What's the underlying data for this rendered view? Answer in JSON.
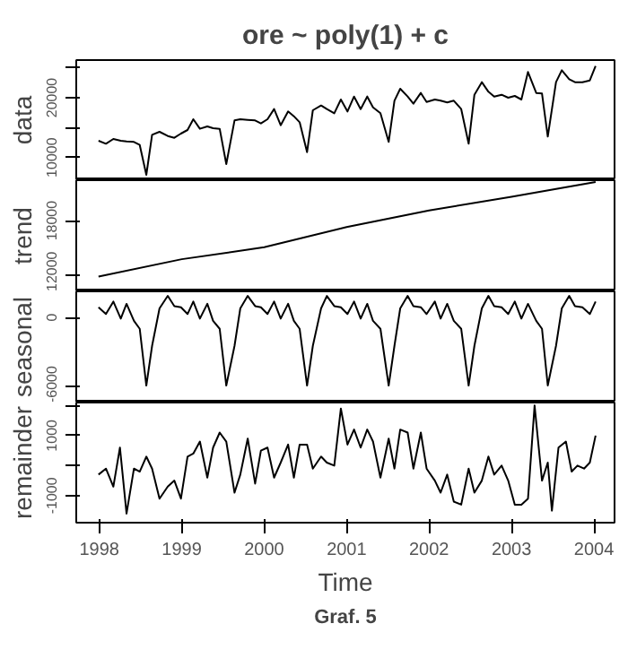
{
  "chart_data": [
    {
      "type": "line",
      "title": "ore ~ poly(1) + c",
      "ylabel": "data",
      "tick_labels": "y",
      "grid": false,
      "xlim": [
        1997.72,
        2004.25
      ],
      "ylim": [
        6200,
        26300
      ],
      "yticks": [
        10000,
        {
          "value": 15000,
          "label": null
        },
        20000,
        {
          "value": 25000,
          "label": null
        }
      ],
      "series": [
        {
          "color": "#000000",
          "x": [
            1997.99,
            1998.08,
            1998.17,
            1998.26,
            1998.33,
            1998.42,
            1998.49,
            1998.57,
            1998.64,
            1998.73,
            1998.83,
            1998.91,
            1998.99,
            1999.07,
            1999.14,
            1999.22,
            1999.31,
            1999.38,
            1999.46,
            1999.54,
            1999.64,
            1999.71,
            1999.8,
            1999.89,
            1999.96,
            2000.04,
            2000.12,
            2000.2,
            2000.29,
            2000.36,
            2000.43,
            2000.52,
            2000.59,
            2000.69,
            2000.76,
            2000.85,
            2000.93,
            2001.01,
            2001.09,
            2001.17,
            2001.25,
            2001.32,
            2001.41,
            2001.51,
            2001.58,
            2001.65,
            2001.74,
            2001.81,
            2001.9,
            2001.97,
            2002.07,
            2002.14,
            2002.22,
            2002.3,
            2002.39,
            2002.48,
            2002.55,
            2002.64,
            2002.72,
            2002.79,
            2002.88,
            2002.96,
            2003.04,
            2003.12,
            2003.2,
            2003.3,
            2003.37,
            2003.44,
            2003.54,
            2003.61,
            2003.7,
            2003.77,
            2003.86,
            2003.95,
            2004.02
          ],
          "values": [
            12800,
            12300,
            13100,
            12800,
            12700,
            12600,
            12100,
            7100,
            13800,
            14300,
            13600,
            13300,
            14000,
            14600,
            16400,
            14800,
            15200,
            14900,
            14800,
            8900,
            16200,
            16400,
            16300,
            16200,
            15700,
            16400,
            18100,
            15400,
            17700,
            16900,
            15900,
            10900,
            17900,
            18700,
            18100,
            17400,
            19700,
            17700,
            20200,
            18100,
            20200,
            18400,
            17400,
            12600,
            19500,
            21500,
            20200,
            19000,
            20800,
            19300,
            19700,
            19500,
            19200,
            19500,
            18100,
            12300,
            20500,
            22600,
            21000,
            20200,
            20500,
            20000,
            20300,
            19700,
            24300,
            20800,
            20700,
            13500,
            22600,
            24600,
            23100,
            22600,
            22600,
            22900,
            25300
          ]
        }
      ]
    },
    {
      "type": "line",
      "ylabel": "trend",
      "tick_labels": "y",
      "grid": false,
      "xlim": [
        1997.72,
        2004.25
      ],
      "ylim": [
        10300,
        22400
      ],
      "yticks": [
        12000,
        18000
      ],
      "series": [
        {
          "color": "#000000",
          "x": [
            1997.99,
            1999.0,
            2000.0,
            2001.0,
            2002.0,
            2003.0,
            2004.02
          ],
          "values": [
            11900,
            13800,
            15100,
            17300,
            19100,
            20600,
            22200
          ]
        }
      ]
    },
    {
      "type": "line",
      "ylabel": "seasonal",
      "tick_labels": "y",
      "grid": false,
      "xlim": [
        1997.72,
        2004.25
      ],
      "ylim": [
        -7500,
        2300
      ],
      "yticks": [
        -6000,
        0
      ],
      "series": [
        {
          "color": "#000000",
          "x": [
            1997.99,
            1998.08,
            1998.17,
            1998.26,
            1998.33,
            1998.42,
            1998.49,
            1998.57,
            1998.64,
            1998.73,
            1998.83,
            1998.91,
            1998.99,
            1999.07,
            1999.14,
            1999.22,
            1999.31,
            1999.38,
            1999.46,
            1999.54,
            1999.64,
            1999.71,
            1999.8,
            1999.89,
            1999.96,
            2000.04,
            2000.12,
            2000.2,
            2000.29,
            2000.36,
            2000.43,
            2000.52,
            2000.59,
            2000.69,
            2000.76,
            2000.85,
            2000.93,
            2001.01,
            2001.09,
            2001.17,
            2001.25,
            2001.32,
            2001.41,
            2001.51,
            2001.58,
            2001.65,
            2001.74,
            2001.81,
            2001.9,
            2001.97,
            2002.07,
            2002.14,
            2002.22,
            2002.3,
            2002.39,
            2002.48,
            2002.55,
            2002.64,
            2002.72,
            2002.79,
            2002.88,
            2002.96,
            2003.04,
            2003.12,
            2003.2,
            2003.3,
            2003.37,
            2003.44,
            2003.54,
            2003.61,
            2003.7,
            2003.77,
            2003.86,
            2003.95,
            2004.02
          ],
          "values": [
            900,
            300,
            1400,
            -100,
            1200,
            -300,
            -1000,
            -6000,
            -2500,
            800,
            1900,
            1000,
            900,
            300,
            1400,
            -100,
            1200,
            -300,
            -1000,
            -6000,
            -2500,
            800,
            1900,
            1000,
            900,
            300,
            1400,
            -100,
            1200,
            -300,
            -1000,
            -6000,
            -2500,
            800,
            1900,
            1000,
            900,
            300,
            1400,
            -100,
            1200,
            -300,
            -1000,
            -6000,
            -2500,
            800,
            1900,
            1000,
            900,
            300,
            1400,
            -100,
            1200,
            -300,
            -1000,
            -6000,
            -2500,
            800,
            1900,
            1000,
            900,
            300,
            1400,
            -100,
            1200,
            -300,
            -1000,
            -6000,
            -2500,
            800,
            1900,
            1000,
            900,
            300,
            1400
          ]
        }
      ]
    },
    {
      "type": "line",
      "ylabel": "remainder",
      "xlabel": "Time",
      "grid": false,
      "xlim": [
        1997.72,
        2004.25
      ],
      "xticks": [
        1998,
        1999,
        2000,
        2001,
        2002,
        2003,
        2004
      ],
      "ylim": [
        -1900,
        2100
      ],
      "yticks": [
        -1000,
        {
          "value": 0,
          "label": null
        },
        1000,
        {
          "value": 2000,
          "label": null
        }
      ],
      "annotations": [
        "Graf. 5"
      ],
      "series": [
        {
          "color": "#000000",
          "x": [
            1997.99,
            1998.08,
            1998.17,
            1998.25,
            1998.33,
            1998.42,
            1998.49,
            1998.57,
            1998.64,
            1998.73,
            1998.83,
            1998.91,
            1998.99,
            1999.07,
            1999.14,
            1999.22,
            1999.31,
            1999.38,
            1999.46,
            1999.54,
            1999.64,
            1999.71,
            1999.8,
            1999.89,
            1999.96,
            2000.04,
            2000.12,
            2000.2,
            2000.29,
            2000.36,
            2000.43,
            2000.52,
            2000.59,
            2000.69,
            2000.76,
            2000.85,
            2000.93,
            2001.01,
            2001.09,
            2001.17,
            2001.25,
            2001.32,
            2001.41,
            2001.51,
            2001.58,
            2001.65,
            2001.74,
            2001.81,
            2001.9,
            2001.97,
            2002.07,
            2002.14,
            2002.22,
            2002.3,
            2002.39,
            2002.48,
            2002.55,
            2002.64,
            2002.72,
            2002.79,
            2002.88,
            2002.96,
            2003.04,
            2003.12,
            2003.2,
            2003.28,
            2003.37,
            2003.44,
            2003.49,
            2003.57,
            2003.66,
            2003.73,
            2003.8,
            2003.88,
            2003.95,
            2004.02
          ],
          "values": [
            -300,
            -100,
            -700,
            600,
            -1600,
            -100,
            -200,
            300,
            -100,
            -1100,
            -700,
            -500,
            -1100,
            300,
            400,
            800,
            -400,
            600,
            1100,
            800,
            -900,
            -300,
            900,
            -600,
            500,
            600,
            -400,
            100,
            700,
            -400,
            700,
            700,
            -100,
            300,
            100,
            0,
            1900,
            700,
            1200,
            600,
            1200,
            800,
            -400,
            900,
            -100,
            1200,
            1100,
            -100,
            1100,
            -100,
            -500,
            -900,
            -300,
            -1200,
            -1300,
            -100,
            -900,
            -500,
            300,
            -300,
            0,
            -500,
            -1300,
            -1300,
            -1100,
            2000,
            -500,
            100,
            -1500,
            600,
            800,
            -200,
            0,
            -100,
            100,
            1000
          ]
        }
      ]
    }
  ]
}
